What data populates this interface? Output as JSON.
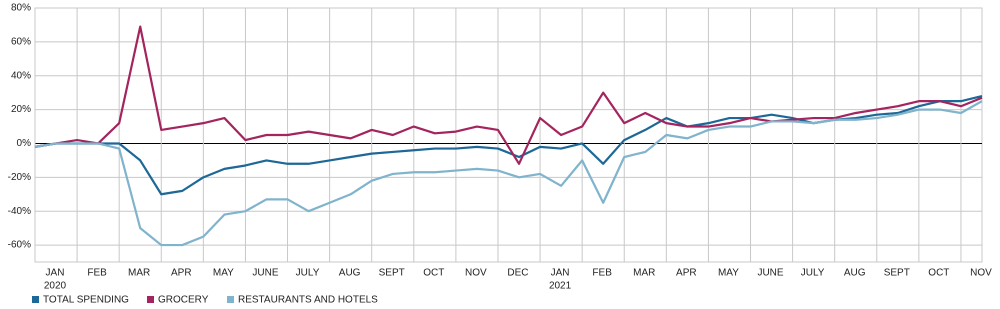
{
  "chart_data": {
    "type": "line",
    "x": [
      0,
      0.5,
      1,
      1.5,
      2,
      2.5,
      3,
      3.5,
      4,
      4.5,
      5,
      5.5,
      6,
      6.5,
      7,
      7.5,
      8,
      8.5,
      9,
      9.5,
      10,
      10.5,
      11,
      11.5,
      12,
      12.5,
      13,
      13.5,
      14,
      14.5,
      15,
      15.5,
      16,
      16.5,
      17,
      17.5,
      18,
      18.5,
      19,
      19.5,
      20,
      20.5,
      21,
      21.5,
      22,
      22.5
    ],
    "xlim": [
      0,
      22.5
    ],
    "xticks": [
      {
        "value": 0,
        "label": "JAN"
      },
      {
        "value": 1,
        "label": "FEB"
      },
      {
        "value": 2,
        "label": "MAR"
      },
      {
        "value": 3,
        "label": "APR"
      },
      {
        "value": 4,
        "label": "MAY"
      },
      {
        "value": 5,
        "label": "JUNE"
      },
      {
        "value": 6,
        "label": "JULY"
      },
      {
        "value": 7,
        "label": "AUG"
      },
      {
        "value": 8,
        "label": "SEPT"
      },
      {
        "value": 9,
        "label": "OCT"
      },
      {
        "value": 10,
        "label": "NOV"
      },
      {
        "value": 11,
        "label": "DEC"
      },
      {
        "value": 12,
        "label": "JAN"
      },
      {
        "value": 13,
        "label": "FEB"
      },
      {
        "value": 14,
        "label": "MAR"
      },
      {
        "value": 15,
        "label": "APR"
      },
      {
        "value": 16,
        "label": "MAY"
      },
      {
        "value": 17,
        "label": "JUNE"
      },
      {
        "value": 18,
        "label": "JULY"
      },
      {
        "value": 19,
        "label": "AUG"
      },
      {
        "value": 20,
        "label": "SEPT"
      },
      {
        "value": 21,
        "label": "OCT"
      },
      {
        "value": 22,
        "label": "NOV"
      }
    ],
    "year_labels": [
      {
        "value": 0,
        "label": "2020"
      },
      {
        "value": 12,
        "label": "2021"
      }
    ],
    "ylim": [
      -70,
      80
    ],
    "yticks": [
      {
        "value": -60,
        "label": "-60%"
      },
      {
        "value": -40,
        "label": "-40%"
      },
      {
        "value": -20,
        "label": "-20%"
      },
      {
        "value": 0,
        "label": "0%"
      },
      {
        "value": 20,
        "label": "20%"
      },
      {
        "value": 40,
        "label": "40%"
      },
      {
        "value": 60,
        "label": "60%"
      },
      {
        "value": 80,
        "label": "80%"
      }
    ],
    "grid": true,
    "series": [
      {
        "name": "TOTAL SPENDING",
        "color": "#1d6896",
        "values": [
          -2,
          0,
          0,
          0,
          0,
          -10,
          -30,
          -28,
          -20,
          -15,
          -13,
          -10,
          -12,
          -12,
          -10,
          -8,
          -6,
          -5,
          -4,
          -3,
          -3,
          -2,
          -3,
          -8,
          -2,
          -3,
          0,
          -12,
          2,
          8,
          15,
          10,
          12,
          15,
          15,
          17,
          15,
          12,
          14,
          15,
          17,
          18,
          22,
          25,
          25,
          28
        ]
      },
      {
        "name": "GROCERY",
        "color": "#a3245e",
        "values": [
          -2,
          0,
          2,
          0,
          12,
          69,
          8,
          10,
          12,
          15,
          2,
          5,
          5,
          7,
          5,
          3,
          8,
          5,
          10,
          6,
          7,
          10,
          8,
          -12,
          15,
          5,
          10,
          30,
          12,
          18,
          12,
          10,
          10,
          12,
          15,
          13,
          14,
          15,
          15,
          18,
          20,
          22,
          25,
          25,
          22,
          27
        ]
      },
      {
        "name": "RESTAURANTS AND HOTELS",
        "color": "#80b3cc",
        "values": [
          -2,
          0,
          0,
          0,
          -3,
          -50,
          -60,
          -60,
          -55,
          -42,
          -40,
          -33,
          -33,
          -40,
          -35,
          -30,
          -22,
          -18,
          -17,
          -17,
          -16,
          -15,
          -16,
          -20,
          -18,
          -25,
          -10,
          -35,
          -8,
          -5,
          5,
          3,
          8,
          10,
          10,
          13,
          13,
          12,
          14,
          14,
          15,
          17,
          20,
          20,
          18,
          25
        ]
      }
    ]
  }
}
